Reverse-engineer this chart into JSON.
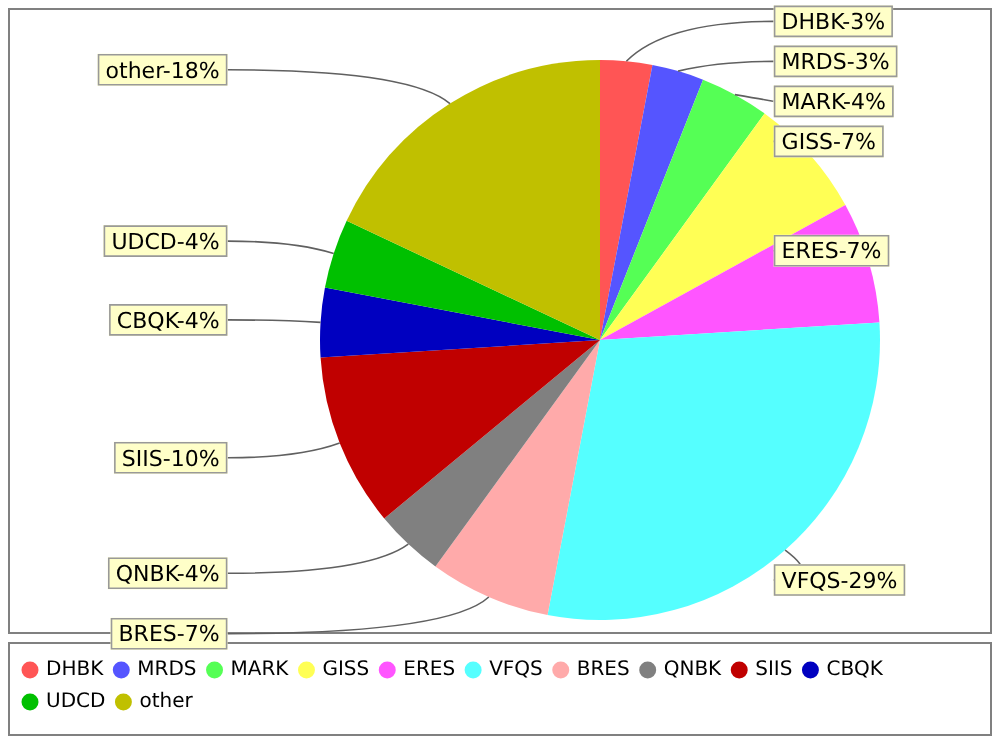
{
  "chart_data": {
    "type": "pie",
    "categories": [
      "DHBK",
      "MRDS",
      "MARK",
      "GISS",
      "ERES",
      "VFQS",
      "BRES",
      "QNBK",
      "SIIS",
      "CBQK",
      "UDCD",
      "other"
    ],
    "values": [
      3,
      3,
      4,
      7,
      7,
      29,
      7,
      4,
      10,
      4,
      4,
      18
    ],
    "colors": [
      "#ff5555",
      "#5555ff",
      "#55ff55",
      "#ffff55",
      "#ff55ff",
      "#55ffff",
      "#ffaaaa",
      "#808080",
      "#c00000",
      "#0000c0",
      "#00c000",
      "#c0c000"
    ],
    "value_labels": [
      "DHBK-3%",
      "MRDS-3%",
      "MARK-4%",
      "GISS-7%",
      "ERES-7%",
      "VFQS-29%",
      "BRES-7%",
      "QNBK-4%",
      "SIIS-10%",
      "CBQK-4%",
      "UDCD-4%",
      "other-18%"
    ],
    "legend": "bottom"
  }
}
